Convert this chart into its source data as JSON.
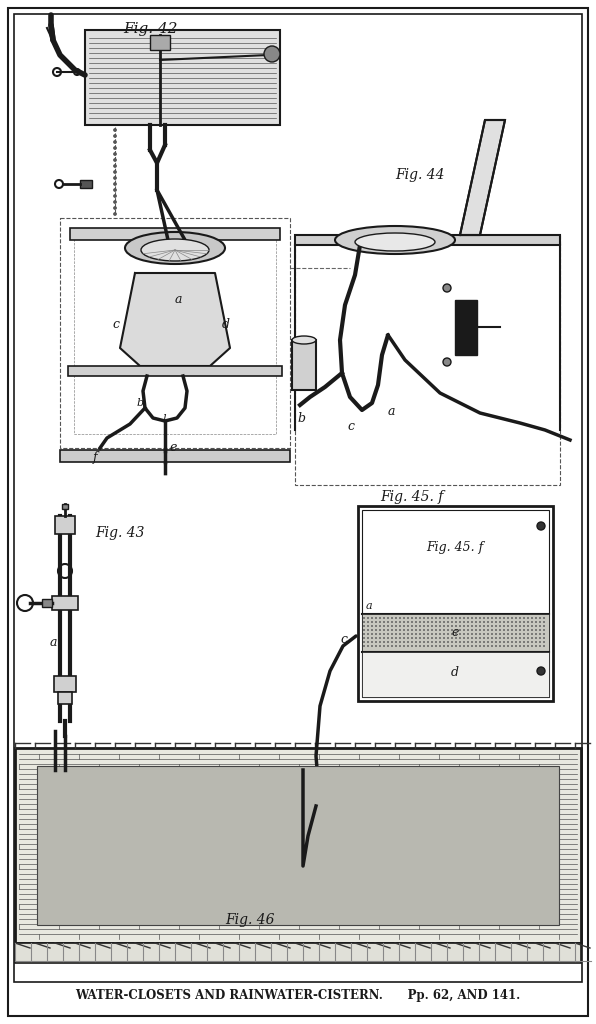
{
  "bg": "#ffffff",
  "lc": "#1a1a1a",
  "caption": "WATER-CLOSETS AND RAINWATER-CISTERN.      Pp. 62, AND 141.",
  "fig42": "Fig. 42",
  "fig43": "Fig. 43",
  "fig44": "Fig. 44",
  "fig45": "Fig. 45. f",
  "fig46": "Fig. 46"
}
